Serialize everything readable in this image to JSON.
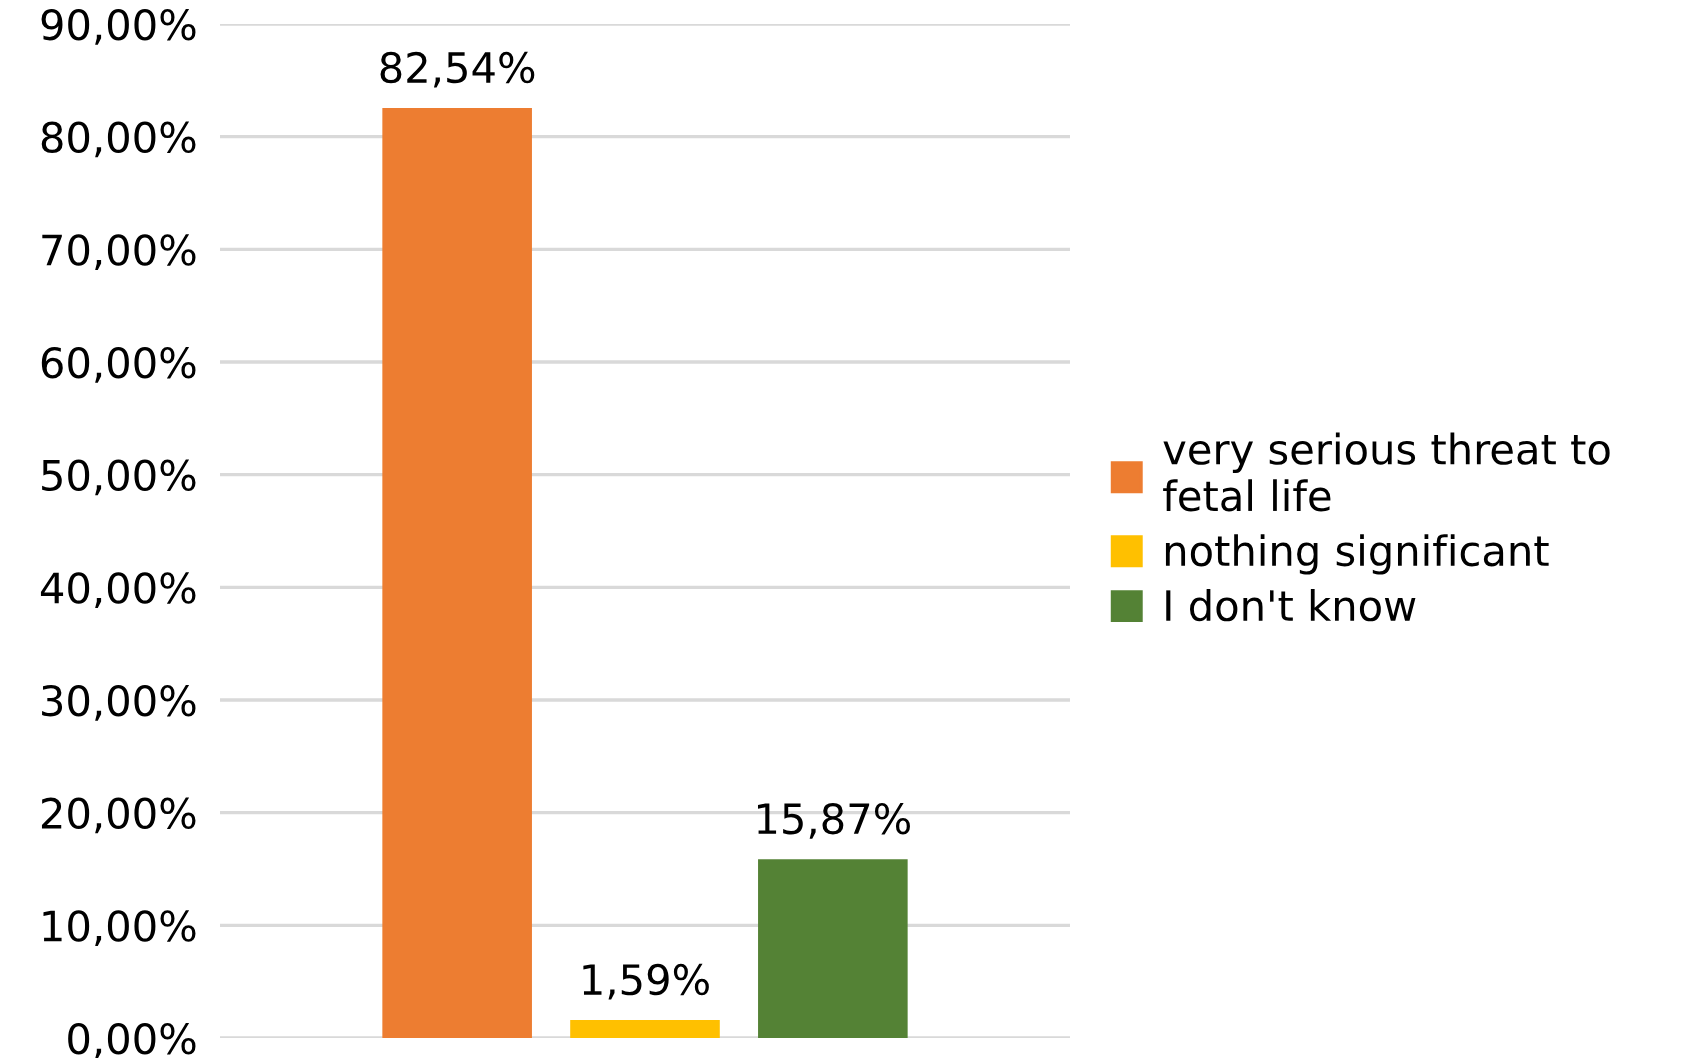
{
  "chart_data": {
    "type": "bar",
    "categories": [
      null
    ],
    "series": [
      {
        "name": "very serious threat to\nfetal life",
        "color": "#ed7d31",
        "values": [
          82.54
        ],
        "value_labels": [
          "82,54%"
        ]
      },
      {
        "name": "nothing significant",
        "color": "#ffc000",
        "values": [
          1.59
        ],
        "value_labels": [
          "1,59%"
        ]
      },
      {
        "name": "I don't know",
        "color": "#548235",
        "values": [
          15.87
        ],
        "value_labels": [
          "15,87%"
        ]
      }
    ],
    "ylim": [
      0,
      90
    ],
    "yticks": [
      {
        "value": 0,
        "label": "0,00%"
      },
      {
        "value": 10,
        "label": "10,00%"
      },
      {
        "value": 20,
        "label": "20,00%"
      },
      {
        "value": 30,
        "label": "30,00%"
      },
      {
        "value": 40,
        "label": "40,00%"
      },
      {
        "value": 50,
        "label": "50,00%"
      },
      {
        "value": 60,
        "label": "60,00%"
      },
      {
        "value": 70,
        "label": "70,00%"
      },
      {
        "value": 80,
        "label": "80,00%"
      },
      {
        "value": 90,
        "label": "90,00%"
      }
    ],
    "grid": "y",
    "legend": "right"
  }
}
